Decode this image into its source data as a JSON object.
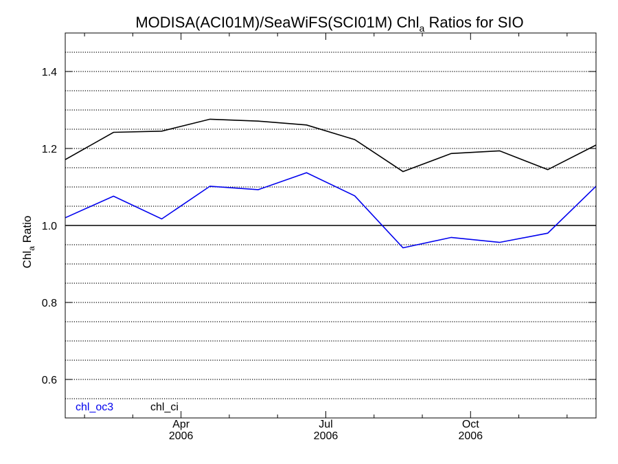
{
  "chart_data": {
    "type": "line",
    "title": {
      "main": "MODISA(ACI01M)/SeaWiFS(SCI01M)  Chl",
      "sub": "a",
      "rest": " Ratios for SIO"
    },
    "ylabel": {
      "main": "Chl",
      "sub": "a",
      "rest": " Ratio"
    },
    "xlabel": "",
    "ylim": [
      0.5,
      1.5
    ],
    "xlim": [
      0,
      11
    ],
    "y_ticks": [
      0.6,
      0.8,
      1.0,
      1.2,
      1.4
    ],
    "y_tick_labels": [
      "0.6",
      "0.8",
      "1.0",
      "1.2",
      "1.4"
    ],
    "y_minor_step": 0.05,
    "x_major_ticks": [
      {
        "x": 2.4,
        "month": "Apr",
        "year": "2006"
      },
      {
        "x": 5.4,
        "month": "Jul",
        "year": "2006"
      },
      {
        "x": 8.4,
        "month": "Oct",
        "year": "2006"
      }
    ],
    "x_minor_ticks": [
      0.4,
      1.4,
      3.4,
      4.4,
      6.4,
      7.4,
      9.4,
      10.4
    ],
    "grid": "dotted horizontal",
    "reference_line": 1.0,
    "x": [
      0,
      1,
      2,
      3,
      4,
      5,
      6,
      7,
      8,
      9,
      10,
      11
    ],
    "series": [
      {
        "name": "chl_oc3",
        "color": "#0000ee",
        "values": [
          1.02,
          1.076,
          1.017,
          1.102,
          1.093,
          1.137,
          1.077,
          0.942,
          0.969,
          0.956,
          0.98,
          1.102
        ]
      },
      {
        "name": "chl_ci",
        "color": "#000000",
        "values": [
          1.171,
          1.242,
          1.245,
          1.276,
          1.271,
          1.261,
          1.223,
          1.14,
          1.187,
          1.194,
          1.145,
          1.209
        ]
      }
    ],
    "legend_position": "bottom-left"
  }
}
